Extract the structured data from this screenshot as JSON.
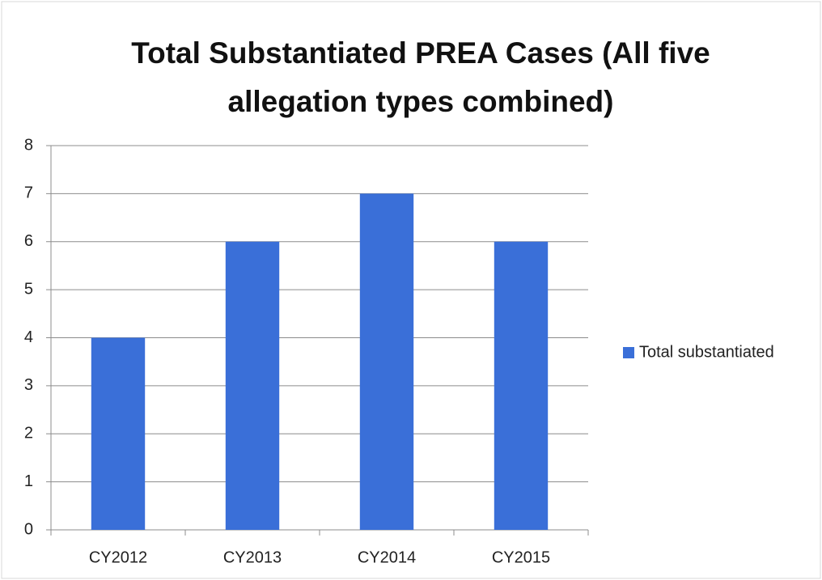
{
  "chart_data": {
    "type": "bar",
    "title": "Total Substantiated PREA Cases (All five allegation types combined)",
    "categories": [
      "CY2012",
      "CY2013",
      "CY2014",
      "CY2015"
    ],
    "series": [
      {
        "name": "Total substantiated",
        "color": "#3a6fd8",
        "values": [
          4,
          6,
          7,
          6
        ]
      }
    ],
    "ylim": [
      0,
      8
    ],
    "yticks": [
      0,
      1,
      2,
      3,
      4,
      5,
      6,
      7,
      8
    ],
    "grid": true,
    "legend": "right"
  }
}
